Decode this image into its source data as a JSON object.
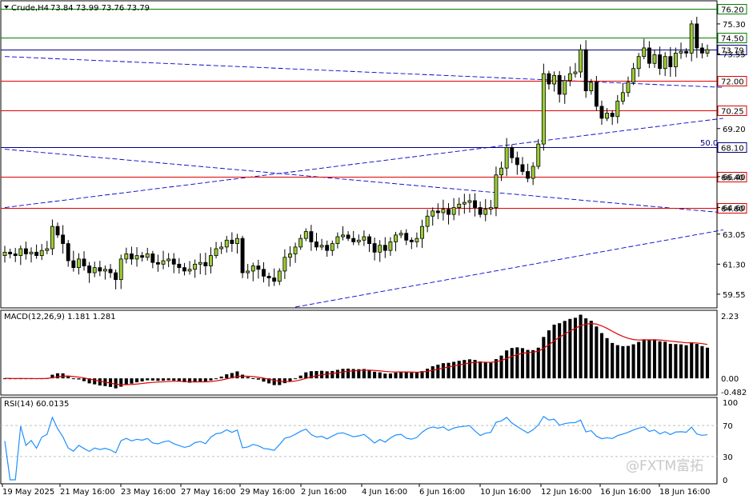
{
  "chart_data": {
    "type": "candlestick",
    "symbol_label": "Crude,H4",
    "ohlc_header": "73.84 73.99 73.76 73.79",
    "price_axis": {
      "min": 58.8,
      "max": 76.6,
      "ticks": [
        "75.30",
        "73.55",
        "69.20",
        "66.40",
        "64.60",
        "63.05",
        "61.30",
        "59.55"
      ]
    },
    "levels": [
      {
        "label": "76.20",
        "value": 76.2,
        "color": "#008000"
      },
      {
        "label": "74.50",
        "value": 74.5,
        "color": "#008000"
      },
      {
        "label": "73.79",
        "value": 73.79,
        "color": "#000080"
      },
      {
        "label": "72.00",
        "value": 72.0,
        "color": "#e00000"
      },
      {
        "label": "70.25",
        "value": 70.25,
        "color": "#e00000"
      },
      {
        "label": "68.10",
        "value": 68.1,
        "color": "#000080"
      },
      {
        "label": "66.40",
        "value": 66.4,
        "color": "#e00000"
      },
      {
        "label": "64.60",
        "value": 64.6,
        "color": "#e00000"
      }
    ],
    "fib_label": "50.0",
    "x_labels": [
      "19 May 2025",
      "21 May 16:00",
      "23 May 16:00",
      "27 May 16:00",
      "29 May 16:00",
      "2 Jun 16:00",
      "4 Jun 16:00",
      "6 Jun 16:00",
      "10 Jun 16:00",
      "12 Jun 16:00",
      "16 Jun 16:00",
      "18 Jun 16:00"
    ],
    "closes": [
      62.0,
      61.9,
      61.8,
      62.2,
      61.9,
      62.0,
      61.8,
      62.1,
      62.2,
      63.5,
      63.0,
      62.5,
      61.5,
      61.1,
      61.6,
      61.2,
      60.8,
      61.1,
      60.9,
      61.0,
      60.8,
      60.4,
      61.6,
      61.9,
      61.6,
      61.8,
      61.7,
      61.9,
      61.4,
      61.3,
      61.5,
      61.6,
      61.3,
      61.1,
      60.9,
      61.0,
      61.3,
      61.4,
      61.2,
      61.8,
      62.2,
      62.3,
      62.7,
      62.5,
      62.8,
      60.8,
      60.9,
      61.2,
      61.0,
      60.6,
      60.5,
      60.3,
      60.9,
      61.7,
      61.9,
      62.3,
      62.8,
      63.2,
      62.6,
      62.3,
      62.4,
      62.1,
      62.5,
      62.9,
      63.0,
      62.8,
      62.6,
      62.7,
      62.9,
      62.5,
      62.0,
      62.4,
      62.1,
      62.6,
      63.0,
      63.1,
      62.7,
      62.6,
      62.8,
      63.5,
      64.1,
      64.4,
      64.3,
      64.5,
      64.2,
      64.6,
      64.8,
      64.9,
      65.0,
      64.6,
      64.2,
      64.5,
      64.6,
      66.5,
      66.9,
      68.1,
      67.5,
      67.1,
      66.7,
      66.3,
      67.0,
      68.3,
      72.4,
      71.8,
      72.3,
      71.2,
      72.0,
      72.4,
      72.5,
      73.8,
      71.4,
      71.9,
      70.5,
      69.8,
      70.1,
      69.9,
      70.8,
      71.3,
      71.9,
      72.7,
      73.4,
      73.9,
      73.0,
      73.5,
      72.7,
      73.4,
      72.8,
      73.6,
      73.7,
      73.6,
      75.3,
      73.9,
      73.6,
      73.8
    ],
    "macd": {
      "label": "MACD(12,26,9) 1.181 1.281",
      "ticks": [
        "2.23",
        "0.00",
        "-0.482"
      ],
      "min": -0.482,
      "max": 2.23
    },
    "rsi": {
      "label": "RSI(14) 60.0135",
      "ticks": [
        "100",
        "70",
        "30",
        "0"
      ],
      "min": 0,
      "max": 100
    }
  },
  "watermark": "@FXTM富拓"
}
